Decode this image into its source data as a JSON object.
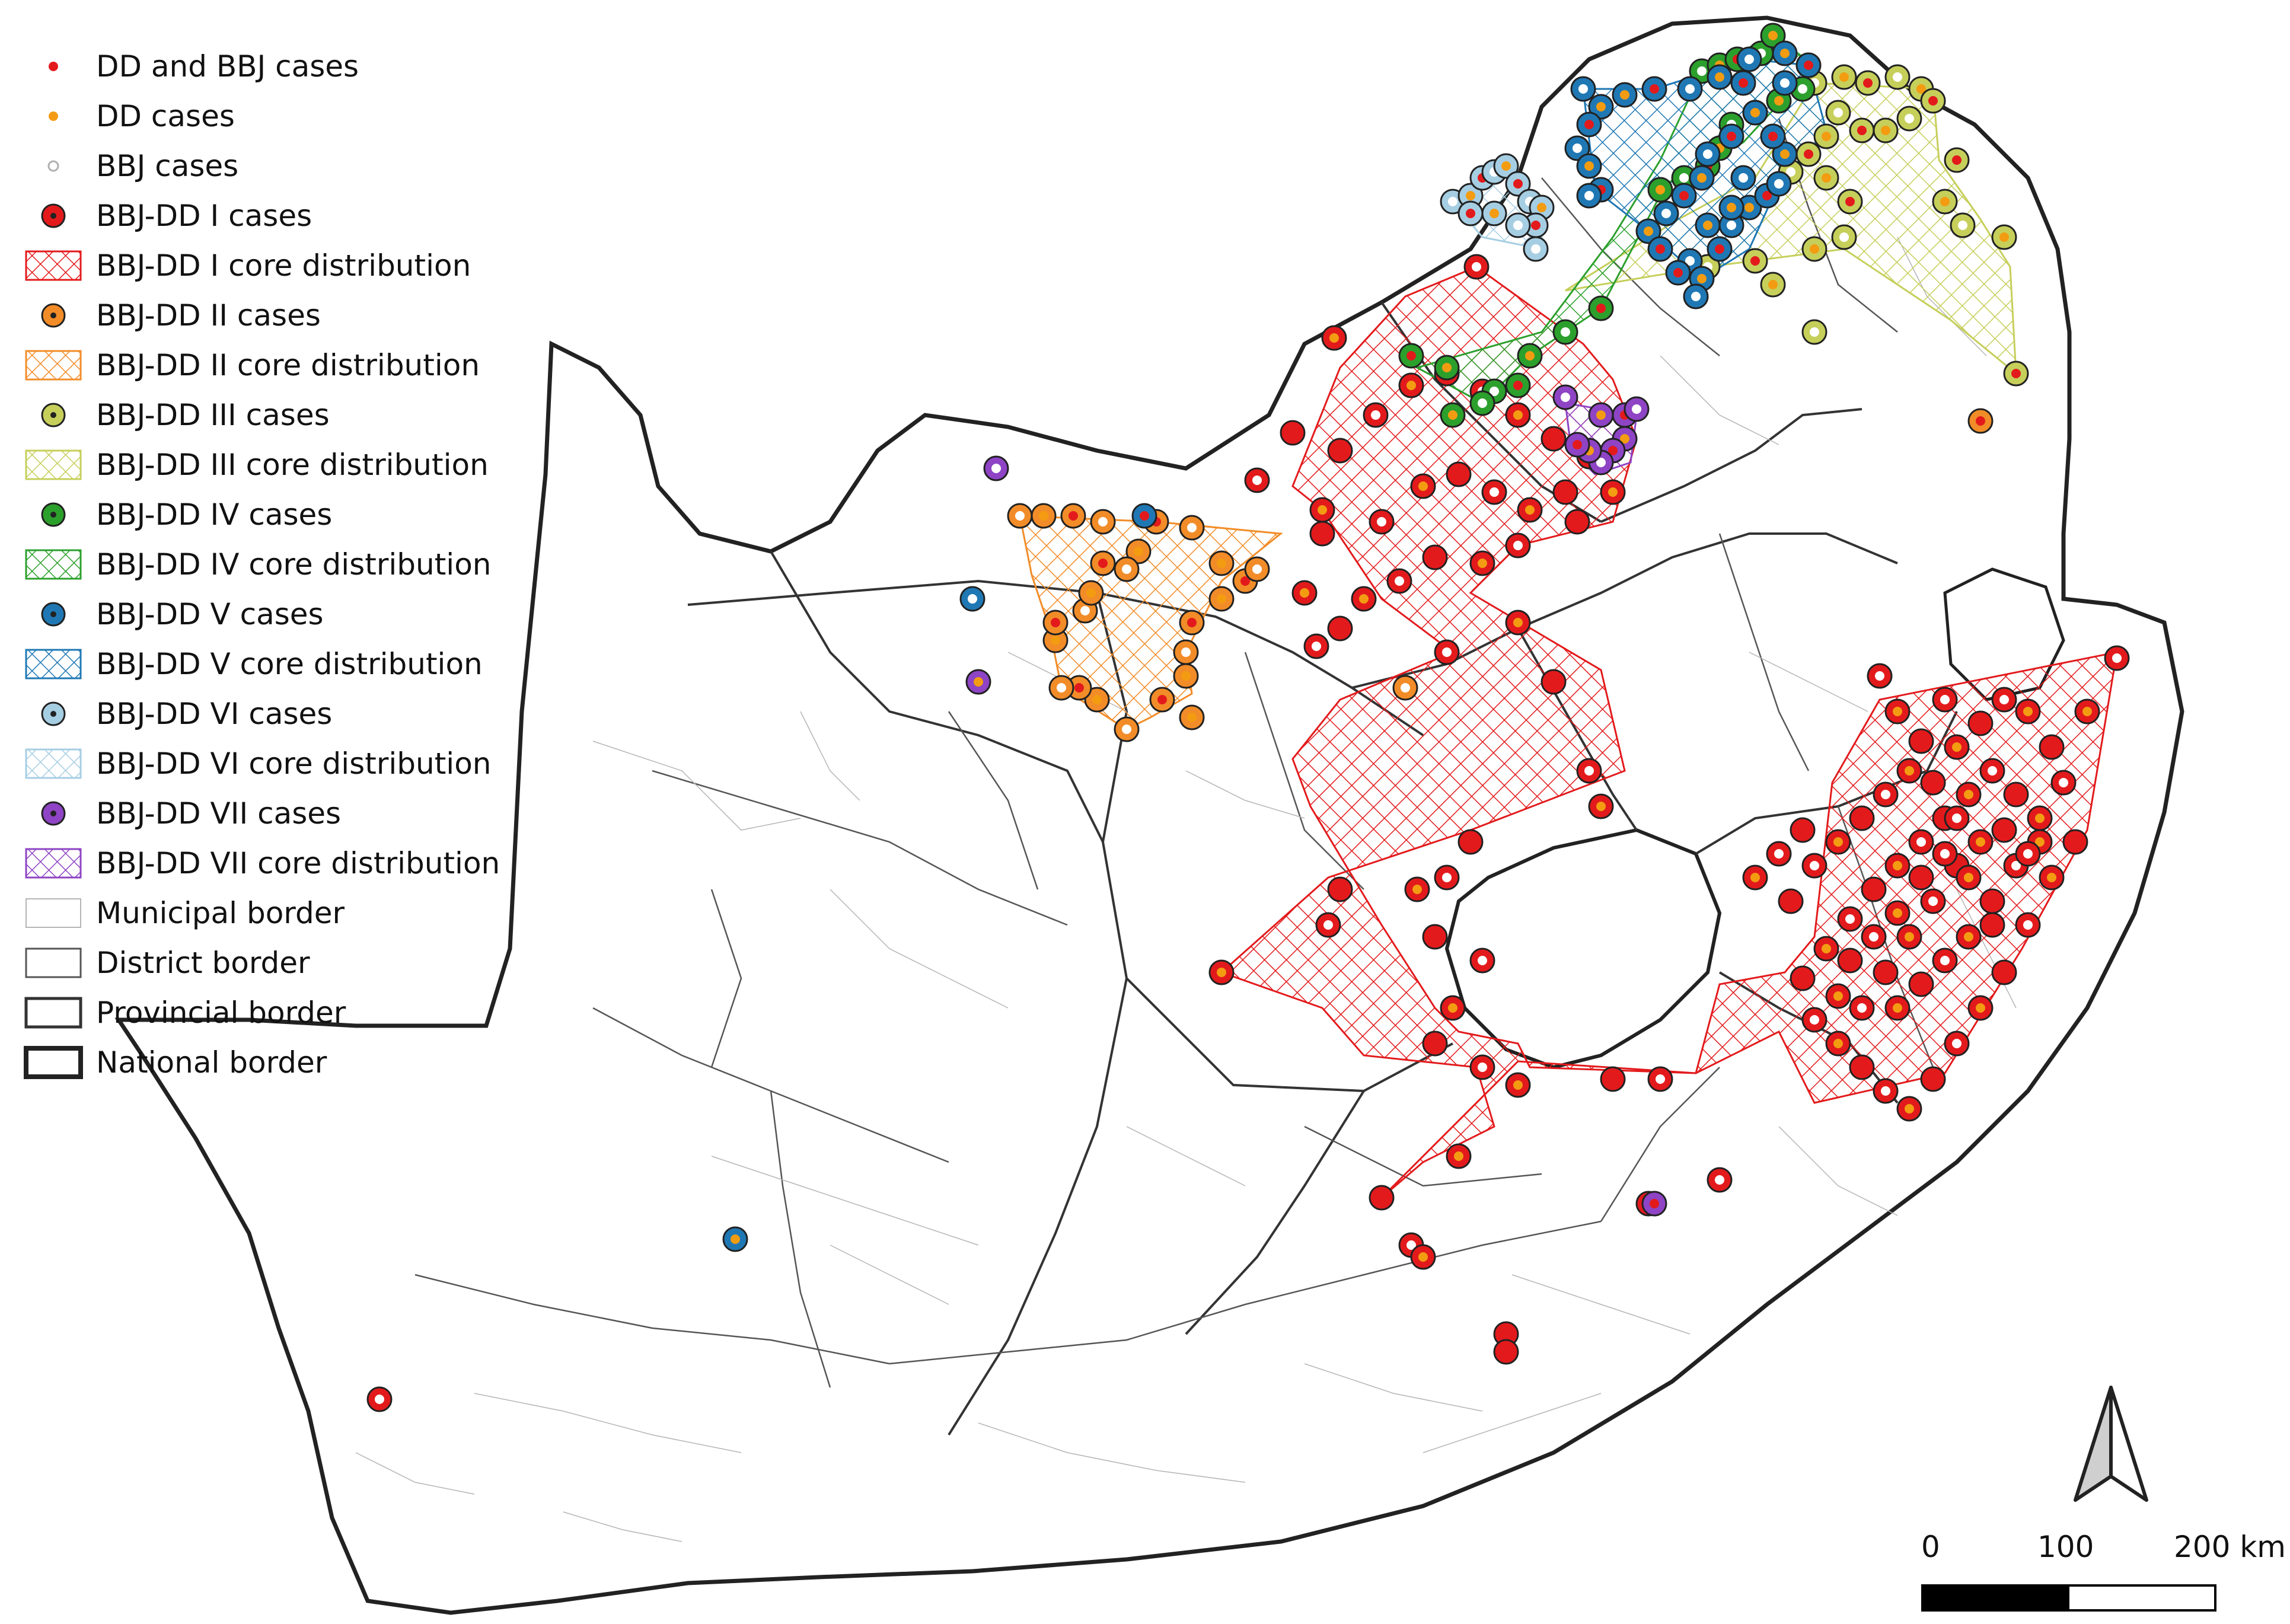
{
  "legend": {
    "dd_bbj": "DD and BBJ cases",
    "dd": "DD cases",
    "bbj": "BBJ cases",
    "c1_cases": "BBJ-DD I cases",
    "c1_dist": "BBJ-DD I core distribution",
    "c2_cases": "BBJ-DD II cases",
    "c2_dist": "BBJ-DD II core distribution",
    "c3_cases": "BBJ-DD III cases",
    "c3_dist": "BBJ-DD III core distribution",
    "c4_cases": "BBJ-DD IV cases",
    "c4_dist": "BBJ-DD IV core distribution",
    "c5_cases": "BBJ-DD V cases",
    "c5_dist": "BBJ-DD V core distribution",
    "c6_cases": "BBJ-DD VI cases",
    "c6_dist": "BBJ-DD VI core distribution",
    "c7_cases": "BBJ-DD VII cases",
    "c7_dist": "BBJ-DD VII core distribution",
    "municipal": "Municipal border",
    "district": "District border",
    "provincial": "Provincial border",
    "national": "National border"
  },
  "colors": {
    "dd_bbj": "#e31a1c",
    "dd": "#f39c12",
    "bbj_ring": "#b0b0b0",
    "c1": "#e31a1c",
    "c2": "#f28c28",
    "c3": "#c6cf5a",
    "c4": "#2ca02c",
    "c5": "#1f78b4",
    "c6": "#a6cee3",
    "c7": "#8e44c4"
  },
  "scale": {
    "zero": "0",
    "mid": "100",
    "end": "200 km"
  },
  "icons": {
    "north": "north-arrow-icon"
  }
}
